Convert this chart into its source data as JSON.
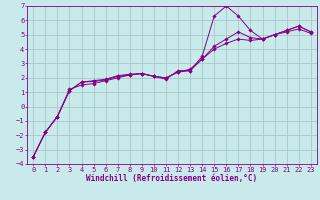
{
  "background_color": "#c8eaea",
  "grid_color": "#a8c8c8",
  "line_color": "#880088",
  "marker_color": "#880088",
  "xlabel": "Windchill (Refroidissement éolien,°C)",
  "xlabel_fontsize": 5.5,
  "xlim": [
    -0.5,
    23.5
  ],
  "ylim": [
    -4,
    7
  ],
  "yticks": [
    -4,
    -3,
    -2,
    -1,
    0,
    1,
    2,
    3,
    4,
    5,
    6,
    7
  ],
  "xticks": [
    0,
    1,
    2,
    3,
    4,
    5,
    6,
    7,
    8,
    9,
    10,
    11,
    12,
    13,
    14,
    15,
    16,
    17,
    18,
    19,
    20,
    21,
    22,
    23
  ],
  "series1_x": [
    0,
    1,
    2,
    3,
    4,
    5,
    6,
    7,
    8,
    9,
    10,
    11,
    12,
    13,
    14,
    15,
    16,
    17,
    18,
    19,
    20,
    21,
    22,
    23
  ],
  "series1_y": [
    -3.5,
    -1.8,
    -0.7,
    1.1,
    1.7,
    1.8,
    1.9,
    2.15,
    2.25,
    2.3,
    2.1,
    1.9,
    2.5,
    2.5,
    3.5,
    6.3,
    7.0,
    6.3,
    5.3,
    4.7,
    5.0,
    5.3,
    5.6,
    5.2
  ],
  "series2_x": [
    0,
    1,
    2,
    3,
    4,
    5,
    6,
    7,
    8,
    9,
    10,
    11,
    12,
    13,
    14,
    15,
    16,
    17,
    18,
    19,
    20,
    21,
    22,
    23
  ],
  "series2_y": [
    -3.5,
    -1.8,
    -0.7,
    1.1,
    1.7,
    1.75,
    1.85,
    2.1,
    2.2,
    2.3,
    2.1,
    2.0,
    2.4,
    2.5,
    3.3,
    4.2,
    4.7,
    5.2,
    4.8,
    4.7,
    5.0,
    5.3,
    5.6,
    5.2
  ],
  "series3_x": [
    0,
    1,
    2,
    3,
    4,
    5,
    6,
    7,
    8,
    9,
    10,
    11,
    12,
    13,
    14,
    15,
    16,
    17,
    18,
    19,
    20,
    21,
    22,
    23
  ],
  "series3_y": [
    -3.5,
    -1.8,
    -0.7,
    1.2,
    1.5,
    1.6,
    1.8,
    2.0,
    2.2,
    2.3,
    2.1,
    2.0,
    2.4,
    2.6,
    3.3,
    4.0,
    4.4,
    4.7,
    4.6,
    4.7,
    5.0,
    5.2,
    5.4,
    5.1
  ],
  "tick_fontsize": 5.0,
  "lw": 0.7,
  "ms": 1.8
}
